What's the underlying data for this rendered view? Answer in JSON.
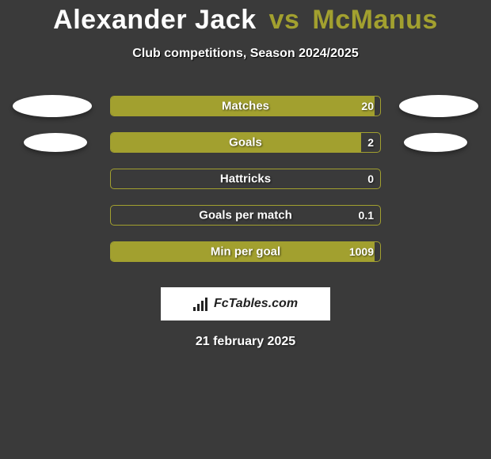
{
  "colors": {
    "background": "#3a3a3a",
    "accent": "#a2a02f",
    "bar_border": "#a2a02f",
    "bar_fill": "#a2a02f",
    "text": "#ffffff",
    "blob": "#ffffff",
    "logo_bg": "#ffffff",
    "logo_fg": "#222222"
  },
  "title": {
    "player1": "Alexander Jack",
    "vs": "vs",
    "player2": "McManus"
  },
  "subtitle": "Club competitions, Season 2024/2025",
  "stats": [
    {
      "label": "Matches",
      "value": "20",
      "fill_pct": 98,
      "left_blob": "large",
      "right_blob": "large"
    },
    {
      "label": "Goals",
      "value": "2",
      "fill_pct": 93,
      "left_blob": "small",
      "right_blob": "small"
    },
    {
      "label": "Hattricks",
      "value": "0",
      "fill_pct": 0,
      "left_blob": "none",
      "right_blob": "none"
    },
    {
      "label": "Goals per match",
      "value": "0.1",
      "fill_pct": 0,
      "left_blob": "none",
      "right_blob": "none"
    },
    {
      "label": "Min per goal",
      "value": "1009",
      "fill_pct": 98,
      "left_blob": "none",
      "right_blob": "none"
    }
  ],
  "logo": {
    "text": "FcTables.com"
  },
  "date": "21 february 2025"
}
